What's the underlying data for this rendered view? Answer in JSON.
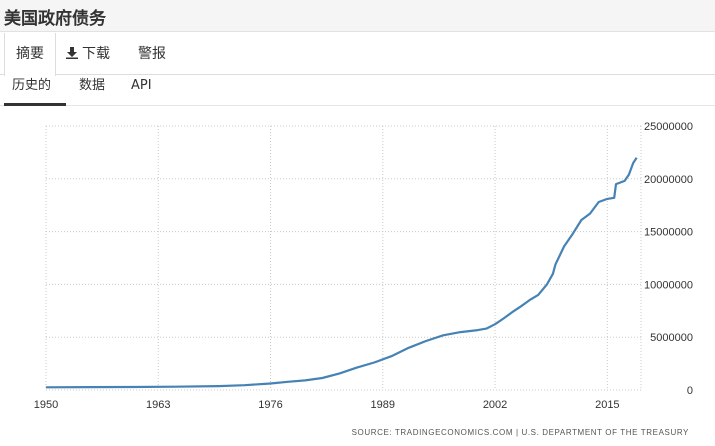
{
  "page": {
    "title": "美国政府债务"
  },
  "tabs": [
    {
      "label": "摘要"
    },
    {
      "label": "下载"
    },
    {
      "label": "警报"
    }
  ],
  "subtabs": [
    {
      "label": "历史的"
    },
    {
      "label": "数据"
    },
    {
      "label": "API"
    }
  ],
  "colors": {
    "line": "#4682b4",
    "grid": "#c8c8c8"
  },
  "chart_data": {
    "type": "line",
    "x_ticks": [
      "1950",
      "1963",
      "1976",
      "1989",
      "2002",
      "2015"
    ],
    "y_ticks": [
      "0",
      "5000000",
      "10000000",
      "15000000",
      "20000000",
      "25000000"
    ],
    "xlim": [
      1950,
      2018.9
    ],
    "ylim": [
      0,
      25000000
    ],
    "grid": true,
    "legend": "none",
    "source": "SOURCE: TRADINGECONOMICS.COM | U.S. DEPARTMENT OF THE TREASURY",
    "series": [
      {
        "x": [
          1950,
          1955,
          1960,
          1965,
          1970,
          1973,
          1976,
          1978,
          1980,
          1982,
          1984,
          1986,
          1988,
          1990,
          1992,
          1994,
          1996,
          1998,
          2000,
          2001,
          2002,
          2003,
          2004,
          2005,
          2006,
          2007,
          2008,
          2008.7,
          2009,
          2010,
          2011,
          2012,
          2013,
          2014,
          2015,
          2015.8,
          2016,
          2017,
          2017.5,
          2018,
          2018.4
        ],
        "y": [
          257000,
          274000,
          286000,
          317000,
          371000,
          458000,
          620000,
          772000,
          908000,
          1140000,
          1570000,
          2120000,
          2600000,
          3200000,
          4000000,
          4640000,
          5180000,
          5480000,
          5670000,
          5810000,
          6230000,
          6780000,
          7380000,
          7930000,
          8510000,
          9010000,
          10000000,
          11000000,
          11900000,
          13600000,
          14800000,
          16100000,
          16700000,
          17800000,
          18100000,
          18200000,
          19500000,
          19800000,
          20400000,
          21500000,
          22000000
        ]
      }
    ]
  }
}
